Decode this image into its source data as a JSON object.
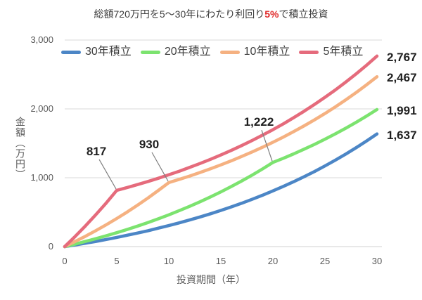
{
  "chart_data": {
    "type": "line",
    "title": {
      "prefix": "総額720万円を5〜30年にわたり利回り",
      "highlight": "5%",
      "suffix": "で積立投資",
      "highlight_color": "#e02b2b"
    },
    "xlabel": "投資期間（年）",
    "ylabel": "金額（万円）",
    "xlim": [
      0,
      30
    ],
    "ylim": [
      0,
      3000
    ],
    "grid": "horizontal",
    "legend_position": "top",
    "xticks": [
      {
        "value": 0,
        "label": "0"
      },
      {
        "value": 5,
        "label": "5"
      },
      {
        "value": 10,
        "label": "10"
      },
      {
        "value": 15,
        "label": "15"
      },
      {
        "value": 20,
        "label": "20"
      },
      {
        "value": 25,
        "label": "25"
      },
      {
        "value": 30,
        "label": "30"
      }
    ],
    "yticks": [
      {
        "value": 0,
        "label": "0"
      },
      {
        "value": 1000,
        "label": "1,000"
      },
      {
        "value": 2000,
        "label": "2,000"
      },
      {
        "value": 3000,
        "label": "3,000"
      }
    ],
    "x": [
      0,
      1,
      2,
      3,
      4,
      5,
      6,
      7,
      8,
      9,
      10,
      11,
      12,
      13,
      14,
      15,
      16,
      17,
      18,
      19,
      20,
      21,
      22,
      23,
      24,
      25,
      26,
      27,
      28,
      29,
      30
    ],
    "series": [
      {
        "name": "30年積立",
        "color": "#4c86c6",
        "end_label": "1,637",
        "values": [
          0,
          24,
          50,
          76,
          104,
          134,
          165,
          197,
          231,
          268,
          305,
          345,
          387,
          431,
          477,
          526,
          577,
          630,
          687,
          746,
          809,
          874,
          943,
          1015,
          1091,
          1171,
          1256,
          1344,
          1437,
          1535,
          1637
        ]
      },
      {
        "name": "20年積立",
        "color": "#7ce36f",
        "end_label": "1,991",
        "values": [
          0,
          36,
          75,
          115,
          158,
          202,
          249,
          298,
          350,
          404,
          461,
          522,
          585,
          651,
          721,
          795,
          872,
          953,
          1038,
          1128,
          1222,
          1283,
          1347,
          1415,
          1485,
          1560,
          1638,
          1719,
          1805,
          1896,
          1991
        ]
      },
      {
        "name": "10年積立",
        "color": "#f5b181",
        "end_label": "2,467",
        "values": [
          0,
          74,
          151,
          233,
          318,
          408,
          502,
          602,
          706,
          816,
          930,
          977,
          1025,
          1077,
          1131,
          1187,
          1246,
          1309,
          1374,
          1443,
          1515,
          1591,
          1670,
          1754,
          1841,
          1933,
          2030,
          2132,
          2238,
          2350,
          2467
        ]
      },
      {
        "name": "5年積立",
        "color": "#e56b7c",
        "end_label": "2,767",
        "values": [
          0,
          147,
          302,
          465,
          636,
          817,
          858,
          901,
          946,
          993,
          1043,
          1095,
          1150,
          1207,
          1267,
          1331,
          1397,
          1467,
          1541,
          1618,
          1698,
          1783,
          1873,
          1966,
          2065,
          2168,
          2276,
          2390,
          2509,
          2635,
          2767
        ]
      }
    ],
    "annotations": [
      {
        "text": "817",
        "series": "5年積立",
        "x": 5,
        "y": 817
      },
      {
        "text": "930",
        "series": "10年積立",
        "x": 10,
        "y": 930
      },
      {
        "text": "1,222",
        "series": "20年積立",
        "x": 20,
        "y": 1222
      }
    ],
    "colors": {
      "grid": "#d9d9d9",
      "axis_line": "#d0d0d0",
      "tick_text": "#595959",
      "title_text": "#3d3d3d",
      "annotation_text": "#1f1f1f",
      "leader_line": "#7f7f7f"
    }
  }
}
